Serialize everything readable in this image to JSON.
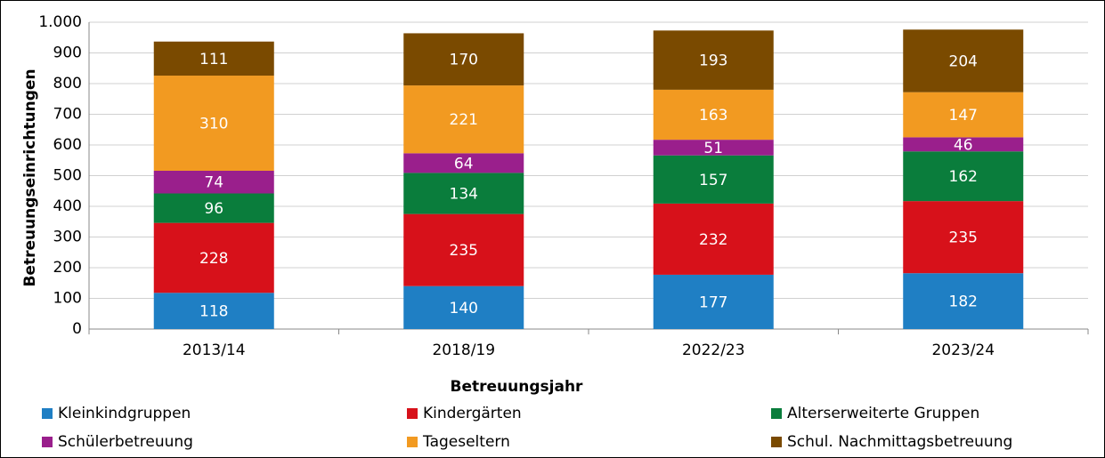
{
  "chart_data": {
    "type": "stacked_bar",
    "categories": [
      "2013/14",
      "2018/19",
      "2022/23",
      "2023/24"
    ],
    "series": [
      {
        "name": "Kleinkindgruppen",
        "color": "#1f7fc4",
        "values": [
          118,
          140,
          177,
          182
        ]
      },
      {
        "name": "Kindergärten",
        "color": "#d7111a",
        "values": [
          228,
          235,
          232,
          235
        ]
      },
      {
        "name": "Alterserweiterte Gruppen",
        "color": "#0a7d3c",
        "values": [
          96,
          134,
          157,
          162
        ]
      },
      {
        "name": "Schülerbetreuung",
        "color": "#9a1f8c",
        "values": [
          74,
          64,
          51,
          46
        ]
      },
      {
        "name": "Tageseltern",
        "color": "#f29a21",
        "values": [
          310,
          221,
          163,
          147
        ]
      },
      {
        "name": "Schul. Nachmittagsbetreuung",
        "color": "#7a4a00",
        "values": [
          111,
          170,
          193,
          204
        ]
      }
    ],
    "xlabel": "Betreuungsjahr",
    "ylabel": "Betreuungseinrichtungen",
    "ylim": [
      0,
      1000
    ],
    "yticks": [
      0,
      100,
      200,
      300,
      400,
      500,
      600,
      700,
      800,
      900,
      {
        "value": 1000,
        "label": "1.000"
      }
    ],
    "grid": true,
    "legend": "bottom"
  }
}
